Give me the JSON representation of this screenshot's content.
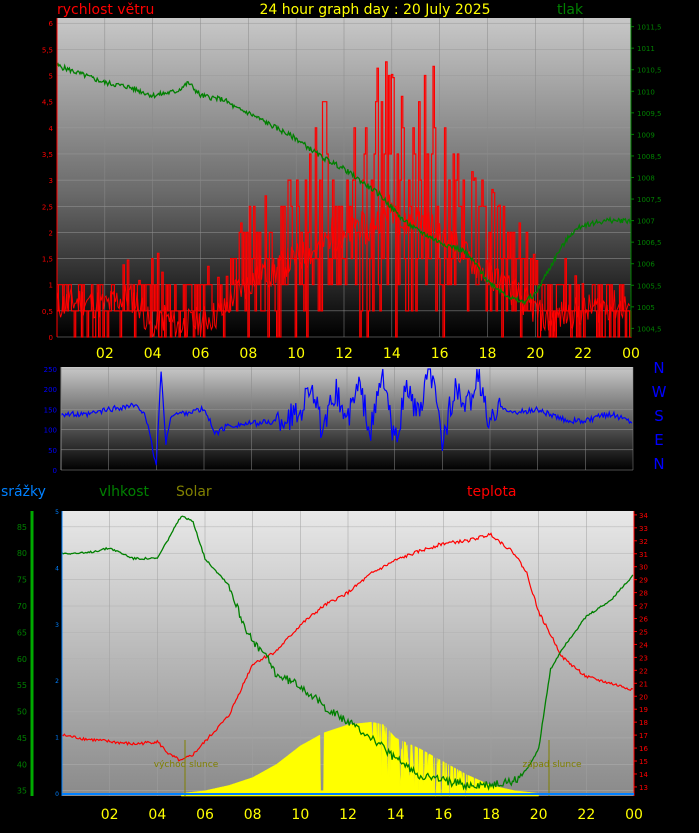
{
  "header": {
    "left_label": "rychlost větru",
    "title": "24 hour graph day : 20 July 2025",
    "right_label": "tlak",
    "left_color": "#ff0000",
    "title_color": "#ffff00",
    "right_color": "#008000"
  },
  "direction_labels": [
    "N",
    "W",
    "S",
    "E",
    "N"
  ],
  "lower_labels": {
    "precip": "srážky",
    "humidity": "vlhkost",
    "solar": "Solar",
    "temperature": "teplota",
    "sunrise": "východ slunce",
    "sunset": "západ slunce"
  },
  "colors": {
    "wind": "#ff0000",
    "pressure": "#008000",
    "direction": "#0000ff",
    "humidity": "#008000",
    "solar": "#ffff00",
    "temperature": "#ff0000",
    "precip": "#0080ff",
    "axis_labels": "#ffff00"
  },
  "chart_data": [
    {
      "type": "line",
      "name": "wind-and-pressure",
      "x_ticks": [
        "02",
        "04",
        "06",
        "08",
        "10",
        "12",
        "14",
        "16",
        "18",
        "20",
        "22",
        "00"
      ],
      "xlim": [
        0,
        24
      ],
      "y_left_ticks": [
        "0",
        "0,5",
        "1",
        "1,5",
        "2",
        "2,5",
        "3",
        "3,5",
        "4",
        "4,5",
        "5",
        "5,5",
        "6"
      ],
      "y_left_lim": [
        0,
        6.1
      ],
      "y_right_ticks": [
        "1004,5",
        "1005",
        "1005,5",
        "1006",
        "1006,5",
        "1007",
        "1007,5",
        "1008",
        "1008,5",
        "1009",
        "1009,5",
        "1010",
        "1010,5",
        "1011",
        "1011,5"
      ],
      "y_right_lim": [
        1004.3,
        1011.7
      ],
      "series": [
        {
          "axis": "left",
          "x": [
            0,
            1,
            2,
            3,
            3.5,
            4,
            4.5,
            5,
            6,
            7,
            7.5,
            8,
            8.5,
            9,
            9.5,
            10,
            10.5,
            11,
            11.5,
            12,
            12.5,
            13,
            13.5,
            14,
            14.5,
            15,
            15.5,
            16,
            16.5,
            17,
            17.5,
            18,
            18.5,
            19,
            19.5,
            20,
            20.5,
            21,
            22,
            23,
            24
          ],
          "values": [
            0.6,
            0.7,
            0.6,
            0.8,
            0.6,
            0.1,
            0.4,
            0.2,
            0.3,
            0.5,
            0.9,
            1.0,
            1.3,
            1.2,
            1.4,
            1.5,
            1.6,
            1.7,
            2.0,
            1.8,
            2.2,
            2.0,
            2.3,
            2.5,
            2.1,
            2.3,
            2.2,
            1.9,
            1.8,
            1.6,
            1.4,
            1.2,
            1.1,
            0.9,
            0.7,
            0.5,
            0.3,
            0.4,
            0.5,
            0.6,
            0.6
          ]
        },
        {
          "axis": "left",
          "x": [
            0,
            1,
            2,
            3,
            3.5,
            4,
            4.5,
            5,
            6,
            7,
            7.5,
            8,
            8.5,
            9,
            9.5,
            10,
            10.5,
            11,
            11.5,
            12,
            12.5,
            13,
            13.5,
            14,
            14.5,
            15,
            15.5,
            16,
            16.5,
            17,
            17.5,
            18,
            18.5,
            19,
            19.5,
            20,
            20.5,
            21,
            22,
            23,
            24
          ],
          "values": [
            1.0,
            1.0,
            1.0,
            1.5,
            1.0,
            2.0,
            1.0,
            1.0,
            1.5,
            1.0,
            2.0,
            2.5,
            2.5,
            3.0,
            3.0,
            3.0,
            3.5,
            5.6,
            3.5,
            4.0,
            4.5,
            4.0,
            5.5,
            5.0,
            4.5,
            4.5,
            6.1,
            4.0,
            4.0,
            3.5,
            3.0,
            3.0,
            2.5,
            2.5,
            2.0,
            1.5,
            1.0,
            1.5,
            1.0,
            1.0,
            1.0
          ]
        },
        {
          "axis": "right",
          "x": [
            0,
            1,
            2,
            3,
            3.5,
            4,
            5,
            5.5,
            6,
            7,
            7.5,
            8,
            9,
            10,
            11,
            12,
            12.5,
            13,
            13.5,
            14,
            14.5,
            15,
            16,
            17,
            17.5,
            18,
            18.5,
            19,
            19.5,
            20,
            20.5,
            21,
            21.5,
            22,
            23,
            24
          ],
          "values": [
            1010.6,
            1010.4,
            1010.2,
            1010.1,
            1010.0,
            1009.9,
            1010.0,
            1010.2,
            1009.9,
            1009.8,
            1009.6,
            1009.5,
            1009.2,
            1008.9,
            1008.5,
            1008.2,
            1008.0,
            1007.8,
            1007.6,
            1007.3,
            1007.0,
            1006.8,
            1006.5,
            1006.3,
            1006.0,
            1005.6,
            1005.4,
            1005.2,
            1005.1,
            1005.3,
            1005.8,
            1006.3,
            1006.7,
            1006.9,
            1007.0,
            1007.0
          ]
        }
      ]
    },
    {
      "type": "line",
      "name": "wind-direction",
      "xlim": [
        0,
        24
      ],
      "y_ticks": [
        "0",
        "50",
        "100",
        "150",
        "200",
        "250"
      ],
      "ylim": [
        0,
        255
      ],
      "x": [
        0,
        1,
        2,
        3,
        3.5,
        4,
        4.2,
        4.4,
        4.6,
        5,
        6,
        6.5,
        7,
        8,
        9,
        10,
        10.5,
        11,
        11.5,
        12,
        12.5,
        13,
        13.5,
        14,
        14.5,
        15,
        15.5,
        16,
        16.5,
        17,
        17.5,
        18,
        18.5,
        19,
        20,
        21,
        22,
        23,
        24
      ],
      "values": [
        140,
        135,
        150,
        160,
        145,
        10,
        250,
        60,
        135,
        140,
        150,
        90,
        110,
        115,
        120,
        140,
        220,
        80,
        200,
        120,
        210,
        95,
        240,
        60,
        210,
        130,
        250,
        70,
        200,
        150,
        230,
        110,
        160,
        140,
        150,
        125,
        120,
        140,
        120
      ]
    },
    {
      "type": "area",
      "name": "humidity-solar-temperature",
      "x_ticks": [
        "02",
        "04",
        "06",
        "08",
        "10",
        "12",
        "14",
        "16",
        "18",
        "20",
        "22",
        "00"
      ],
      "xlim": [
        0,
        24
      ],
      "y_left_ticks": [
        "35",
        "40",
        "45",
        "50",
        "55",
        "60",
        "65",
        "70",
        "75",
        "80",
        "85"
      ],
      "y_left_lim": [
        34,
        88
      ],
      "y_right_ticks": [
        "13",
        "14",
        "15",
        "16",
        "17",
        "18",
        "19",
        "20",
        "21",
        "22",
        "23",
        "24",
        "25",
        "26",
        "27",
        "28",
        "29",
        "30",
        "31",
        "32",
        "33",
        "34"
      ],
      "y_right_lim": [
        12.3,
        34.3
      ],
      "y_precip_ticks": [
        "0",
        "1",
        "2",
        "3",
        "4",
        "5"
      ],
      "series": [
        {
          "name": "vlhkost",
          "axis": "left",
          "x": [
            0,
            1,
            2,
            3,
            4,
            4.5,
            5,
            5.5,
            6,
            7,
            7.5,
            8,
            8.5,
            9,
            10,
            11,
            12,
            13,
            14,
            15,
            16,
            17,
            18,
            19,
            19.5,
            20,
            20.5,
            21,
            22,
            23,
            24
          ],
          "values": [
            80,
            80,
            81,
            79,
            79,
            83,
            87,
            86,
            79,
            74,
            68,
            63,
            61,
            57,
            55,
            51,
            48,
            45,
            41,
            38,
            37,
            36,
            36,
            37,
            39,
            43,
            58,
            62,
            68,
            71,
            76
          ]
        },
        {
          "name": "teplota",
          "axis": "right",
          "x": [
            0,
            1,
            2,
            3,
            4,
            4.5,
            5,
            5.5,
            6,
            6.5,
            7,
            7.5,
            8,
            8.5,
            9,
            10,
            11,
            12,
            13,
            14,
            15,
            16,
            17,
            18,
            19,
            19.5,
            20,
            21,
            22,
            23,
            24
          ],
          "values": [
            17.0,
            16.7,
            16.5,
            16.3,
            16.5,
            15.5,
            15.0,
            15.5,
            16.5,
            17.5,
            18.5,
            20.5,
            22.5,
            23.0,
            23.5,
            25.5,
            27.0,
            28.0,
            29.5,
            30.5,
            31.2,
            31.8,
            32.0,
            32.5,
            31.0,
            29.5,
            26.5,
            23.0,
            21.5,
            21.0,
            20.5
          ]
        },
        {
          "name": "Solar",
          "axis": "left",
          "x": [
            5,
            6,
            7,
            8,
            9,
            10,
            11,
            12,
            13,
            13.5,
            14,
            15,
            16,
            17,
            18,
            19,
            20
          ],
          "values": [
            34.5,
            35.0,
            36.0,
            37.5,
            40.0,
            43.5,
            46.0,
            47.5,
            48.0,
            47.5,
            45.0,
            43.0,
            40.5,
            38.0,
            36.0,
            35.0,
            34.5
          ]
        }
      ]
    }
  ]
}
